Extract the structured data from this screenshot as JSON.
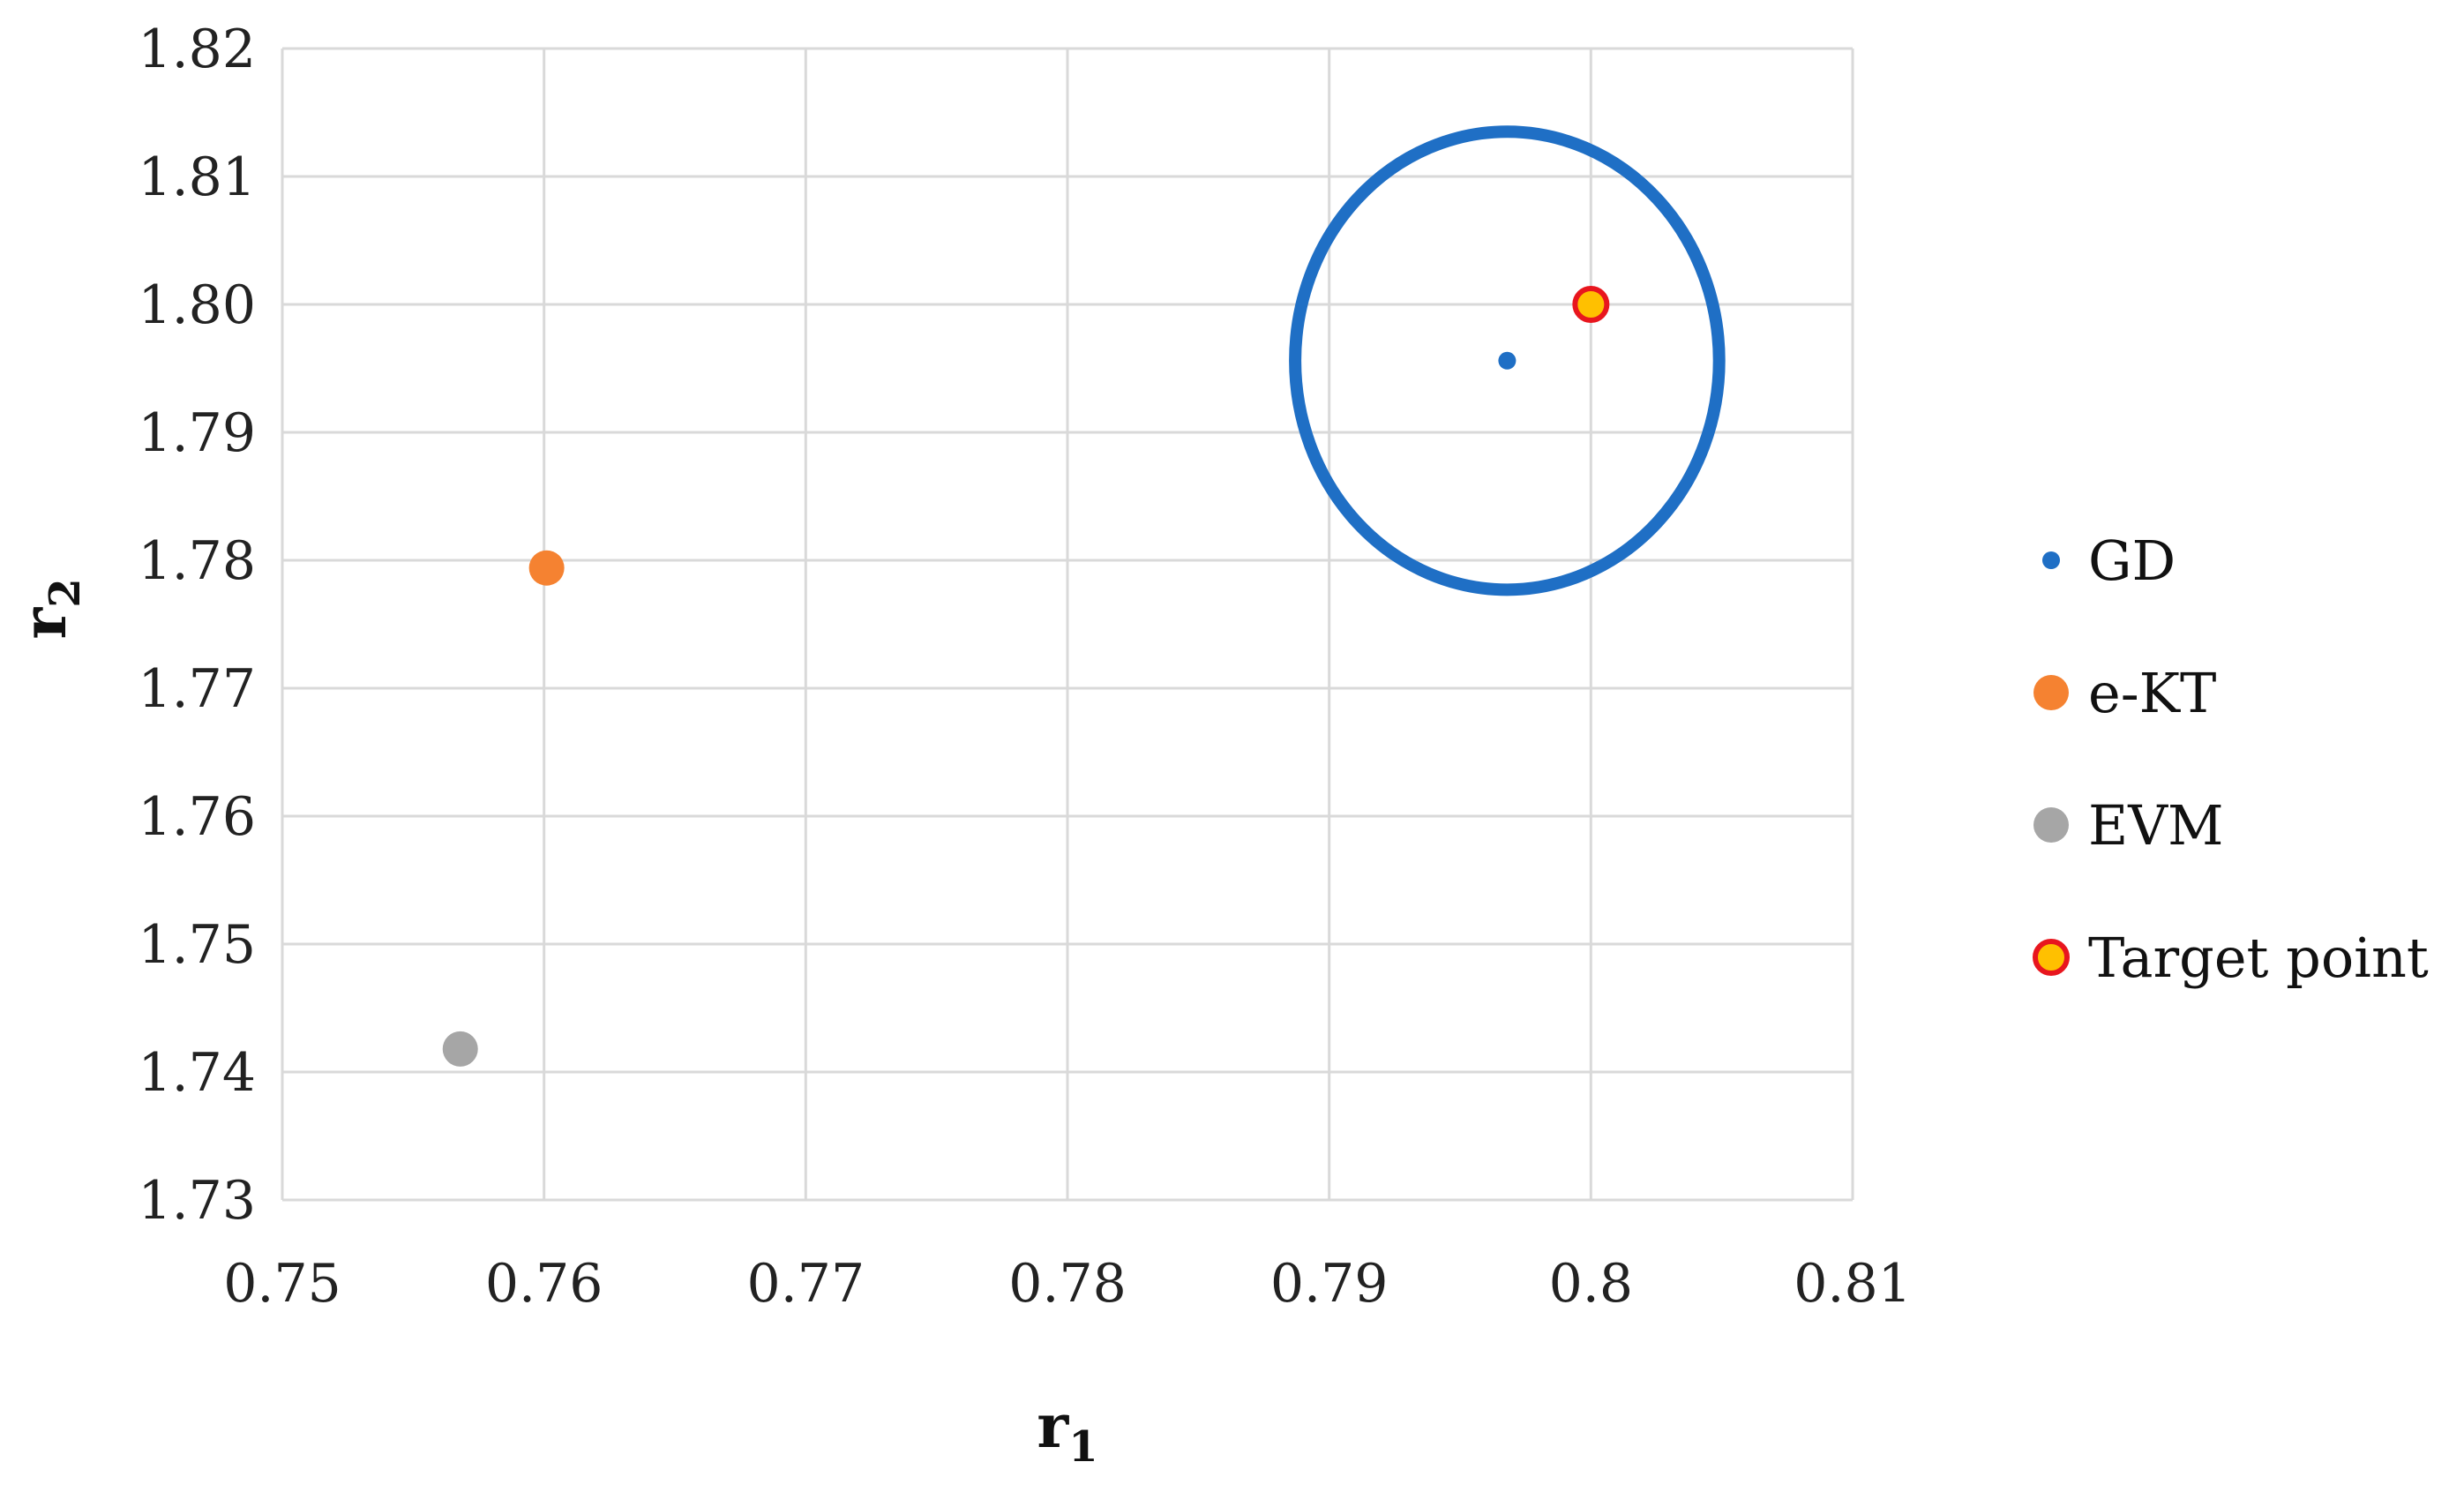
{
  "chart_data": {
    "type": "scatter",
    "title": "",
    "xlabel": "r",
    "xlabel_sub": "1",
    "ylabel": "r",
    "ylabel_sub": "2",
    "xlim": [
      0.75,
      0.81
    ],
    "ylim": [
      1.73,
      1.82
    ],
    "x_ticks": [
      "0.75",
      "0.76",
      "0.77",
      "0.78",
      "0.79",
      "0.8",
      "0.81"
    ],
    "y_ticks": [
      "1.73",
      "1.74",
      "1.75",
      "1.76",
      "1.77",
      "1.78",
      "1.79",
      "1.80",
      "1.81",
      "1.82"
    ],
    "grid": true,
    "legend_position": "right",
    "series": [
      {
        "name": "GD",
        "color": "#1f6fc5",
        "marker": "small-dot",
        "points": [
          {
            "x": 0.7968,
            "y": 1.7956
          }
        ],
        "ring": {
          "cx": 0.7968,
          "cy": 1.7956,
          "rx": 0.0081,
          "ry": 0.0179
        }
      },
      {
        "name": "e-KT",
        "color": "#f58231",
        "marker": "dot",
        "points": [
          {
            "x": 0.7601,
            "y": 1.7794
          }
        ]
      },
      {
        "name": "EVM",
        "color": "#a6a6a6",
        "marker": "dot",
        "points": [
          {
            "x": 0.7568,
            "y": 1.7418
          }
        ]
      },
      {
        "name": "Target point",
        "color": "#ffc000",
        "edge_color": "#e8161e",
        "marker": "ringed-dot",
        "points": [
          {
            "x": 0.8,
            "y": 1.8
          }
        ]
      }
    ]
  }
}
